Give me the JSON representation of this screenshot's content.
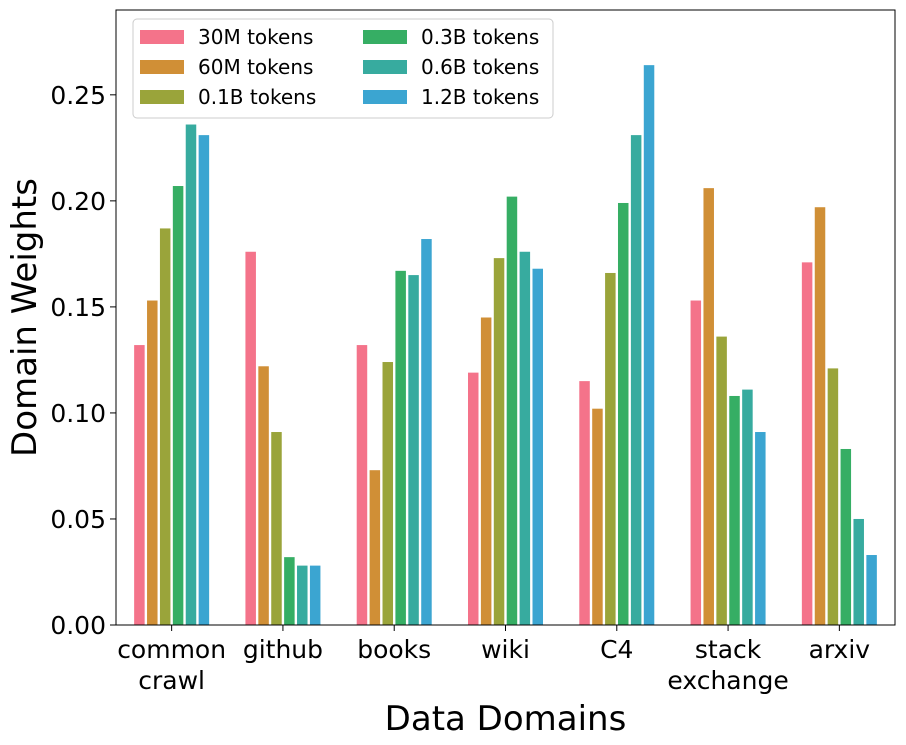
{
  "chart_data": {
    "type": "bar",
    "title": "",
    "xlabel": "Data Domains",
    "ylabel": "Domain Weights",
    "ylim": [
      0,
      0.29
    ],
    "yticks": [
      "0.00",
      "0.05",
      "0.10",
      "0.15",
      "0.20",
      "0.25"
    ],
    "categories": [
      [
        "common",
        "crawl"
      ],
      [
        "github"
      ],
      [
        "books"
      ],
      [
        "wiki"
      ],
      [
        "C4"
      ],
      [
        "stack",
        "exchange"
      ],
      [
        "arxiv"
      ]
    ],
    "legend_position": "top-left",
    "legend_columns": 2,
    "grid": false,
    "series": [
      {
        "name": "30M tokens",
        "color": "#f4738a",
        "values": [
          0.132,
          0.176,
          0.132,
          0.119,
          0.115,
          0.153,
          0.171
        ]
      },
      {
        "name": "60M tokens",
        "color": "#d08f36",
        "values": [
          0.153,
          0.122,
          0.073,
          0.145,
          0.102,
          0.206,
          0.197
        ]
      },
      {
        "name": "0.1B tokens",
        "color": "#9aa43a",
        "values": [
          0.187,
          0.091,
          0.124,
          0.173,
          0.166,
          0.136,
          0.121
        ]
      },
      {
        "name": "0.3B tokens",
        "color": "#36ae64",
        "values": [
          0.207,
          0.032,
          0.167,
          0.202,
          0.199,
          0.108,
          0.083
        ]
      },
      {
        "name": "0.6B tokens",
        "color": "#37ab9f",
        "values": [
          0.236,
          0.028,
          0.165,
          0.176,
          0.231,
          0.111,
          0.05
        ]
      },
      {
        "name": "1.2B tokens",
        "color": "#3ba5d1",
        "values": [
          0.231,
          0.028,
          0.182,
          0.168,
          0.264,
          0.091,
          0.033
        ]
      }
    ]
  }
}
